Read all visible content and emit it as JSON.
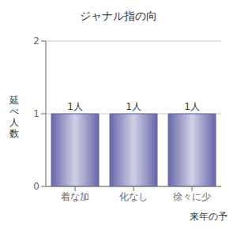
{
  "chart_data": {
    "type": "bar",
    "title": "ジャナル指の向",
    "categories": [
      "着な加",
      "化なし",
      "徐々に少"
    ],
    "values": [
      1,
      1,
      1
    ],
    "value_labels": [
      "1人",
      "1人",
      "1人"
    ],
    "data_labels": true,
    "ylabel": "延\nべ\n人\n数",
    "xlabel": "来年の予",
    "ylim": [
      0,
      2
    ],
    "yticks": [
      0,
      1,
      2
    ],
    "grid": true,
    "color": "#6666aa"
  }
}
